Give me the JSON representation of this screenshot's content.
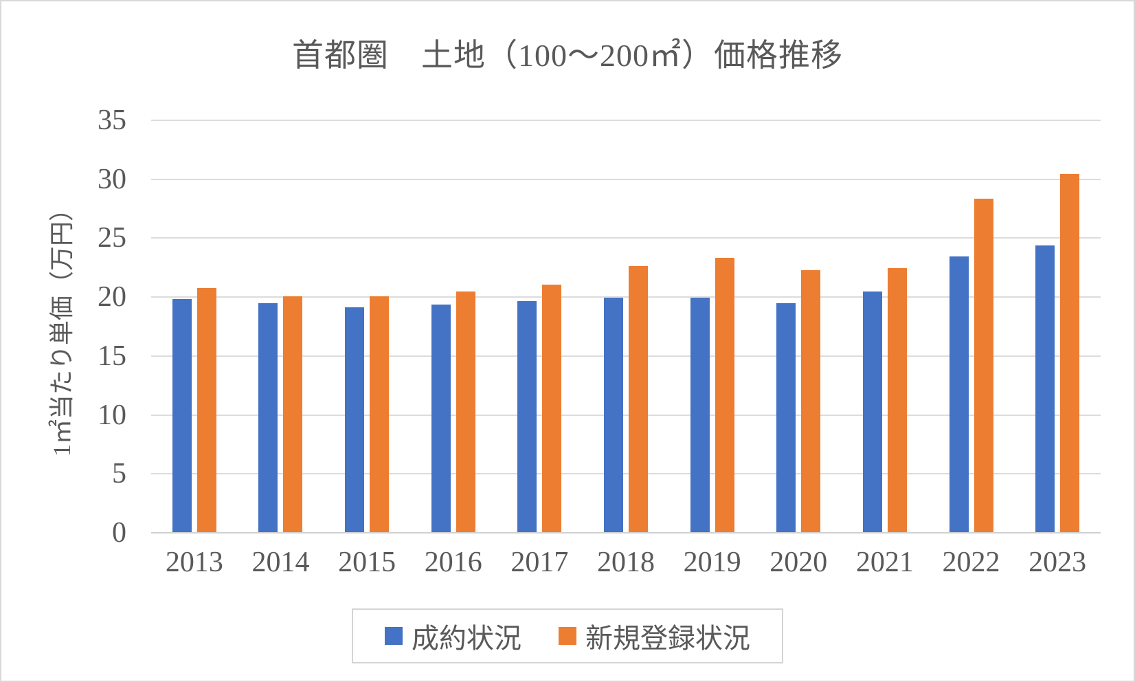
{
  "chart_data": {
    "type": "bar",
    "title": "首都圏　土地（100～200㎡）価格推移",
    "ylabel": "1㎡当たり単価（万円）",
    "xlabel": "",
    "categories": [
      "2013",
      "2014",
      "2015",
      "2016",
      "2017",
      "2018",
      "2019",
      "2020",
      "2021",
      "2022",
      "2023"
    ],
    "series": [
      {
        "name": "成約状況",
        "color": "#4472C4",
        "values": [
          19.8,
          19.4,
          19.1,
          19.3,
          19.6,
          19.9,
          19.9,
          19.4,
          20.4,
          23.4,
          24.3
        ]
      },
      {
        "name": "新規登録状況",
        "color": "#ED7D31",
        "values": [
          20.7,
          20.0,
          20.0,
          20.4,
          21.0,
          22.6,
          23.3,
          22.2,
          22.4,
          28.3,
          30.4
        ]
      }
    ],
    "ylim": [
      0,
      35
    ],
    "yticks": [
      0,
      5,
      10,
      15,
      20,
      25,
      30,
      35
    ],
    "grid": true,
    "legend_position": "bottom"
  },
  "style": {
    "gridline_color": "#dcdcdc",
    "axis_line_color": "#d0d0d0",
    "text_color": "#595959",
    "background_color": "#ffffff",
    "border_color": "#d9d9d9"
  }
}
